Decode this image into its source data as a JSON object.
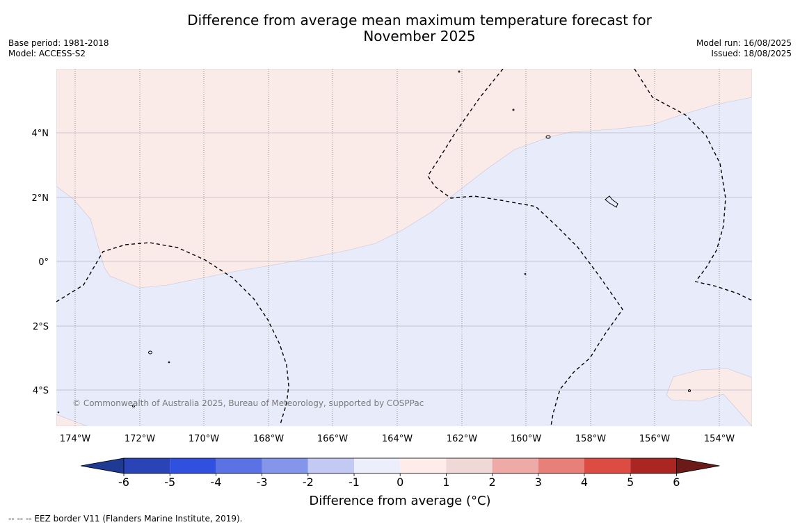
{
  "header": {
    "title_line1": "Difference from average mean maximum temperature forecast for",
    "title_line2": "November 2025",
    "base_period": "Base period: 1981-2018",
    "model": "Model: ACCESS-S2",
    "model_run": "Model run: 16/08/2025",
    "issued": "Issued: 18/08/2025"
  },
  "map": {
    "lat_labels": [
      "4°N",
      "2°N",
      "0°",
      "2°S",
      "4°S"
    ],
    "lon_labels": [
      "174°W",
      "172°W",
      "170°W",
      "168°W",
      "166°W",
      "164°W",
      "162°W",
      "160°W",
      "158°W",
      "156°W",
      "154°W"
    ],
    "copyright": "© Commonwealth of Australia 2025, Bureau of Meteorology, supported by COSPPac",
    "colors": {
      "anomaly_0_to_1": "#fbebe8",
      "anomaly_minus1_to_0": "#e8ebfa"
    }
  },
  "colorbar": {
    "ticks": [
      "-6",
      "-5",
      "-4",
      "-3",
      "-2",
      "-1",
      "0",
      "1",
      "2",
      "3",
      "4",
      "5",
      "6"
    ],
    "colors": [
      "#1f3a93",
      "#2a44b8",
      "#3050e0",
      "#5b72e4",
      "#8496ea",
      "#c2c9f3",
      "#eceefb",
      "#fdecea",
      "#efd9d6",
      "#eeaaa6",
      "#e8807a",
      "#dc4c42",
      "#ab2622",
      "#6b1a17"
    ],
    "label": "Difference from average (°C)"
  },
  "footer": {
    "eez_note": "--  --  -- EEZ border V11 (Flanders Marine Institute, 2019)."
  }
}
